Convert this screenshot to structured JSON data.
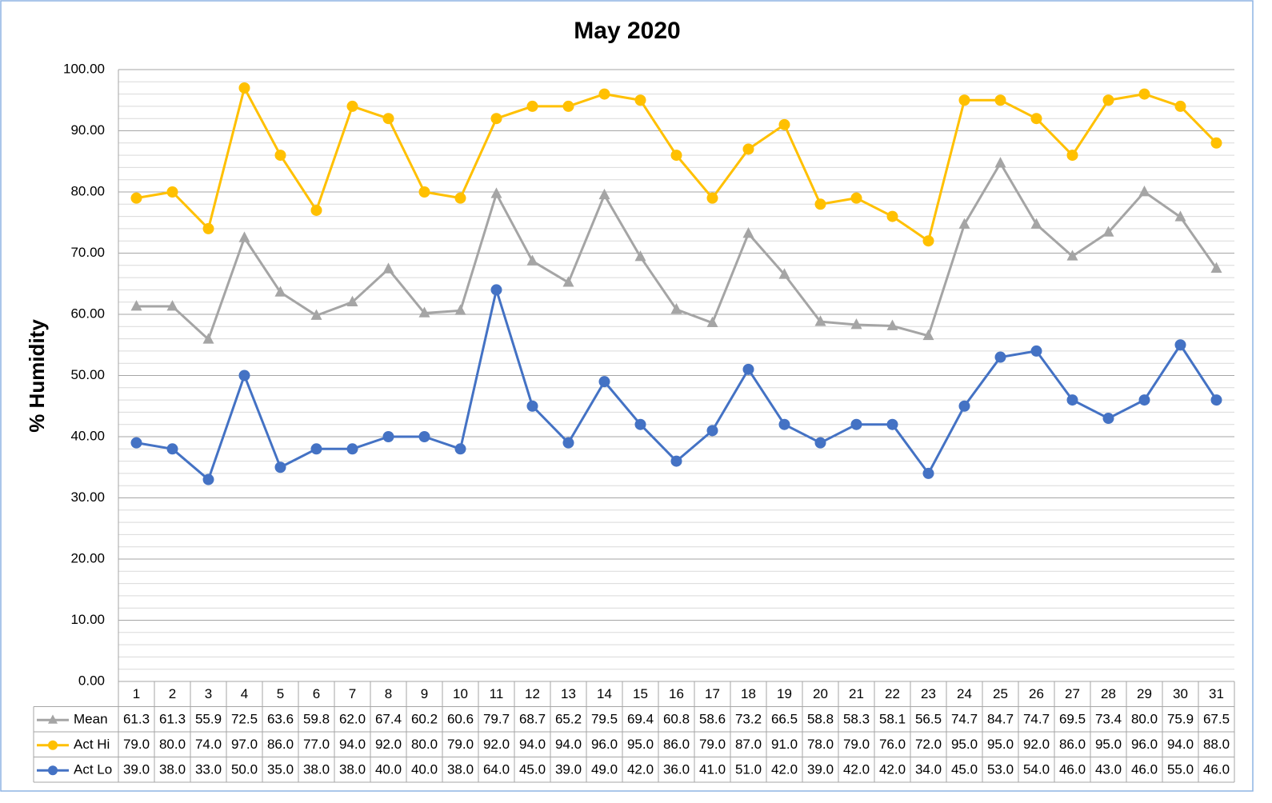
{
  "chart_data": {
    "type": "line",
    "title": "May 2020",
    "y_label": "% Humidity",
    "categories": [
      "1",
      "2",
      "3",
      "4",
      "5",
      "6",
      "7",
      "8",
      "9",
      "10",
      "11",
      "12",
      "13",
      "14",
      "15",
      "16",
      "17",
      "18",
      "19",
      "20",
      "21",
      "22",
      "23",
      "24",
      "25",
      "26",
      "27",
      "28",
      "29",
      "30",
      "31"
    ],
    "series": [
      {
        "name": "Mean",
        "color": "#a5a5a5",
        "marker": "triangle",
        "values": [
          61.3,
          61.3,
          55.9,
          72.5,
          63.6,
          59.8,
          62.0,
          67.4,
          60.2,
          60.6,
          79.7,
          68.7,
          65.2,
          79.5,
          69.4,
          60.8,
          58.6,
          73.2,
          66.5,
          58.8,
          58.3,
          58.1,
          56.5,
          74.7,
          84.7,
          74.7,
          69.5,
          73.4,
          80.0,
          75.9,
          67.5
        ],
        "value_labels": [
          "61.3",
          "61.3",
          "55.9",
          "72.5",
          "63.6",
          "59.8",
          "62.0",
          "67.4",
          "60.2",
          "60.6",
          "79.7",
          "68.7",
          "65.2",
          "79.5",
          "69.4",
          "60.8",
          "58.6",
          "73.2",
          "66.5",
          "58.8",
          "58.3",
          "58.1",
          "56.5",
          "74.7",
          "84.7",
          "74.7",
          "69.5",
          "73.4",
          "80.0",
          "75.9",
          "67.5"
        ]
      },
      {
        "name": "Act Hi",
        "color": "#ffc000",
        "marker": "circle",
        "values": [
          79,
          80,
          74,
          97,
          86,
          77,
          94,
          92,
          80,
          79,
          92,
          94,
          94,
          96,
          95,
          86,
          79,
          87,
          91,
          78,
          79,
          76,
          72,
          95,
          95,
          92,
          86,
          95,
          96,
          94,
          88
        ],
        "value_labels": [
          "79.0",
          "80.0",
          "74.0",
          "97.0",
          "86.0",
          "77.0",
          "94.0",
          "92.0",
          "80.0",
          "79.0",
          "92.0",
          "94.0",
          "94.0",
          "96.0",
          "95.0",
          "86.0",
          "79.0",
          "87.0",
          "91.0",
          "78.0",
          "79.0",
          "76.0",
          "72.0",
          "95.0",
          "95.0",
          "92.0",
          "86.0",
          "95.0",
          "96.0",
          "94.0",
          "88.0"
        ]
      },
      {
        "name": "Act Lo",
        "color": "#4472c4",
        "marker": "circle",
        "values": [
          39,
          38,
          33,
          50,
          35,
          38,
          38,
          40,
          40,
          38,
          64,
          45,
          39,
          49,
          42,
          36,
          41,
          51,
          42,
          39,
          42,
          42,
          34,
          45,
          53,
          54,
          46,
          43,
          46,
          55,
          46
        ],
        "value_labels": [
          "39.0",
          "38.0",
          "33.0",
          "50.0",
          "35.0",
          "38.0",
          "38.0",
          "40.0",
          "40.0",
          "38.0",
          "64.0",
          "45.0",
          "39.0",
          "49.0",
          "42.0",
          "36.0",
          "41.0",
          "51.0",
          "42.0",
          "39.0",
          "42.0",
          "42.0",
          "34.0",
          "45.0",
          "53.0",
          "54.0",
          "46.0",
          "43.0",
          "46.0",
          "55.0",
          "46.0"
        ]
      }
    ],
    "ylim": [
      0,
      100
    ],
    "yticks": [
      {
        "value": 0,
        "label": "0.00"
      },
      {
        "value": 10,
        "label": "10.00"
      },
      {
        "value": 20,
        "label": "20.00"
      },
      {
        "value": 30,
        "label": "30.00"
      },
      {
        "value": 40,
        "label": "40.00"
      },
      {
        "value": 50,
        "label": "50.00"
      },
      {
        "value": 60,
        "label": "60.00"
      },
      {
        "value": 70,
        "label": "70.00"
      },
      {
        "value": 80,
        "label": "80.00"
      },
      {
        "value": 90,
        "label": "90.00"
      },
      {
        "value": 100,
        "label": "100.00"
      }
    ],
    "yminorticks": [
      2,
      4,
      6,
      8,
      12,
      14,
      16,
      18,
      22,
      24,
      26,
      28,
      32,
      34,
      36,
      38,
      42,
      44,
      46,
      48,
      52,
      54,
      56,
      58,
      62,
      64,
      66,
      68,
      72,
      74,
      76,
      78,
      82,
      84,
      86,
      88,
      92,
      94,
      96,
      98
    ],
    "grid": true,
    "data_table": true
  }
}
